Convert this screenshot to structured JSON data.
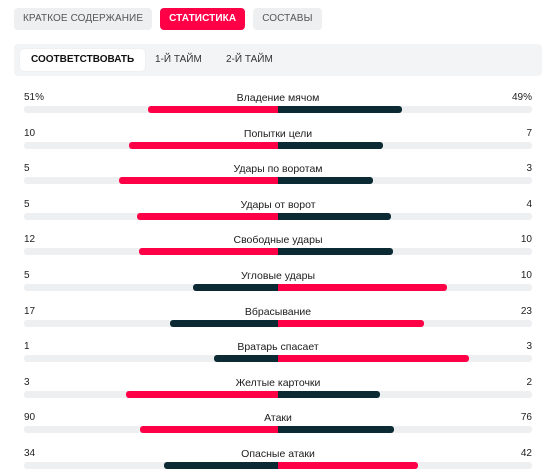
{
  "tabs": [
    {
      "label": "КРАТКОЕ СОДЕРЖАНИЕ",
      "active": false
    },
    {
      "label": "СТАТИСТИКА",
      "active": true
    },
    {
      "label": "СОСТАВЫ",
      "active": false
    }
  ],
  "periods": [
    {
      "label": "СООТВЕТСТВОВАТЬ",
      "active": true
    },
    {
      "label": "1-Й ТАЙМ",
      "active": false
    },
    {
      "label": "2-Й ТАЙМ",
      "active": false
    }
  ],
  "colors": {
    "accent": "#ff0046",
    "dark": "#0c2a33",
    "track": "#eeeff1"
  },
  "stats": [
    {
      "category": "Владение мячом",
      "home": "51%",
      "away": "49%",
      "home_num": 51,
      "away_num": 49
    },
    {
      "category": "Попытки цели",
      "home": "10",
      "away": "7",
      "home_num": 10,
      "away_num": 7
    },
    {
      "category": "Удары по воротам",
      "home": "5",
      "away": "3",
      "home_num": 5,
      "away_num": 3
    },
    {
      "category": "Удары от ворот",
      "home": "5",
      "away": "4",
      "home_num": 5,
      "away_num": 4
    },
    {
      "category": "Свободные удары",
      "home": "12",
      "away": "10",
      "home_num": 12,
      "away_num": 10
    },
    {
      "category": "Угловые удары",
      "home": "5",
      "away": "10",
      "home_num": 5,
      "away_num": 10
    },
    {
      "category": "Вбрасывание",
      "home": "17",
      "away": "23",
      "home_num": 17,
      "away_num": 23
    },
    {
      "category": "Вратарь спасает",
      "home": "1",
      "away": "3",
      "home_num": 1,
      "away_num": 3
    },
    {
      "category": "Желтые карточки",
      "home": "3",
      "away": "2",
      "home_num": 3,
      "away_num": 2
    },
    {
      "category": "Атаки",
      "home": "90",
      "away": "76",
      "home_num": 90,
      "away_num": 76
    },
    {
      "category": "Опасные атаки",
      "home": "34",
      "away": "42",
      "home_num": 34,
      "away_num": 42
    }
  ]
}
